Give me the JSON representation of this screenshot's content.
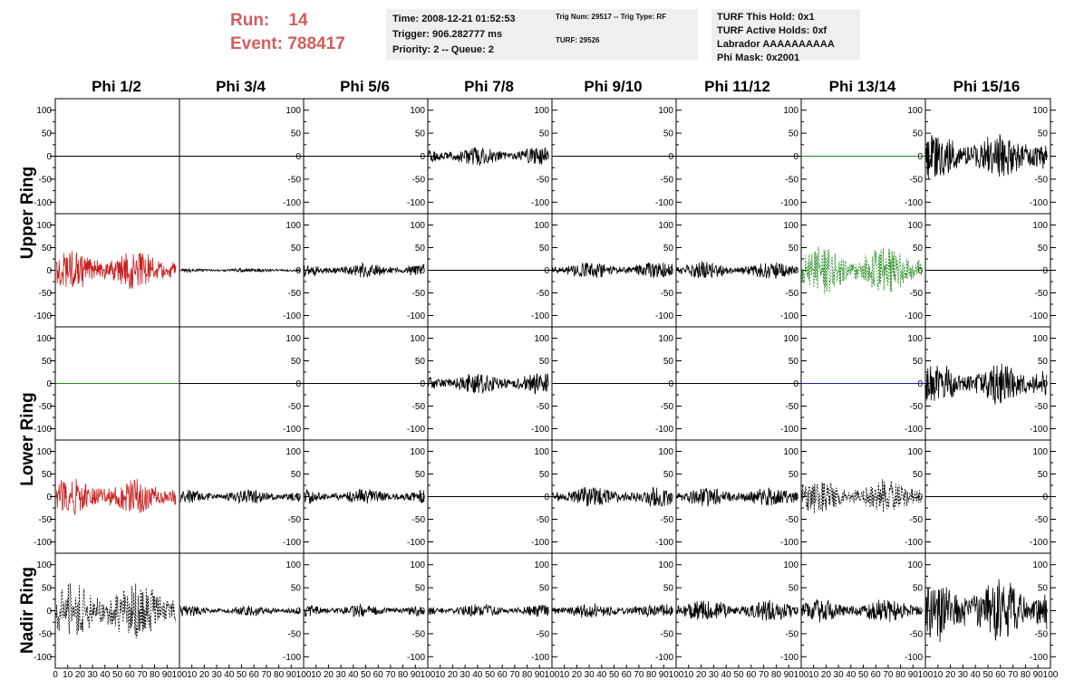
{
  "run_info": {
    "run_label": "Run:",
    "run_value": "14",
    "event_label": "Event:",
    "event_value": "788417"
  },
  "info_boxes": {
    "time": [
      "Time: 2008-12-21 01:52:53",
      "Trigger: 906.282777 ms",
      "Priority: 2 -- Queue: 2"
    ],
    "trig": [
      "Trig Num: 29517 -- Trig Type: RF",
      "TURF: 29526"
    ],
    "turf": [
      "TURF This Hold: 0x1",
      "TURF Active Holds: 0xf",
      "Labrador AAAAAAAAAA",
      "Phi Mask: 0x2001"
    ]
  },
  "colors": {
    "accent_red": "#d35d5d",
    "trace_black": "#000000",
    "trace_red": "#c82020",
    "trace_green": "#1e8a1e",
    "trace_blue": "#1f1fb0"
  },
  "chart_data": {
    "type": "line",
    "columns": [
      "Phi 1/2",
      "Phi 3/4",
      "Phi 5/6",
      "Phi 7/8",
      "Phi 9/10",
      "Phi 11/12",
      "Phi 13/14",
      "Phi 15/16"
    ],
    "row_labels": [
      "Upper Ring",
      "Lower Ring",
      "Nadir Ring"
    ],
    "xlim": [
      0,
      100
    ],
    "ylim": [
      -125,
      125
    ],
    "y_ticks": [
      100,
      50,
      0,
      -50,
      -100
    ],
    "x_ticks": [
      0,
      10,
      20,
      30,
      40,
      50,
      60,
      70,
      80,
      90,
      100
    ],
    "panels": [
      [
        {
          "amp": 0,
          "color": "black"
        },
        {
          "amp": 0,
          "color": "black"
        },
        {
          "amp": 0,
          "color": "black"
        },
        {
          "amp": 18,
          "color": "black"
        },
        {
          "amp": 0,
          "color": "black"
        },
        {
          "amp": 0,
          "color": "black"
        },
        {
          "amp": 0,
          "color": "green"
        },
        {
          "amp": 45,
          "color": "black"
        }
      ],
      [
        {
          "amp": 38,
          "color": "red"
        },
        {
          "amp": 4,
          "color": "black"
        },
        {
          "amp": 14,
          "color": "black"
        },
        {
          "amp": 0,
          "color": "black"
        },
        {
          "amp": 16,
          "color": "black"
        },
        {
          "amp": 17,
          "color": "black"
        },
        {
          "amp": 45,
          "color": "green",
          "dash": true
        },
        {
          "amp": 0,
          "color": "black"
        }
      ],
      [
        {
          "amp": 0,
          "color": "green"
        },
        {
          "amp": 0,
          "color": "black"
        },
        {
          "amp": 0,
          "color": "black"
        },
        {
          "amp": 20,
          "color": "black"
        },
        {
          "amp": 0,
          "color": "black"
        },
        {
          "amp": 0,
          "color": "black"
        },
        {
          "amp": 0,
          "color": "blue"
        },
        {
          "amp": 40,
          "color": "black"
        }
      ],
      [
        {
          "amp": 35,
          "color": "red"
        },
        {
          "amp": 14,
          "color": "black"
        },
        {
          "amp": 15,
          "color": "black"
        },
        {
          "amp": 0,
          "color": "black"
        },
        {
          "amp": 20,
          "color": "black"
        },
        {
          "amp": 18,
          "color": "black"
        },
        {
          "amp": 32,
          "color": "black",
          "dash": true
        },
        {
          "amp": 0,
          "color": "black"
        }
      ],
      [
        {
          "amp": 55,
          "color": "black",
          "dash": true
        },
        {
          "amp": 10,
          "color": "black"
        },
        {
          "amp": 12,
          "color": "black"
        },
        {
          "amp": 12,
          "color": "black"
        },
        {
          "amp": 14,
          "color": "black"
        },
        {
          "amp": 20,
          "color": "black"
        },
        {
          "amp": 22,
          "color": "black"
        },
        {
          "amp": 60,
          "color": "black"
        }
      ]
    ]
  }
}
